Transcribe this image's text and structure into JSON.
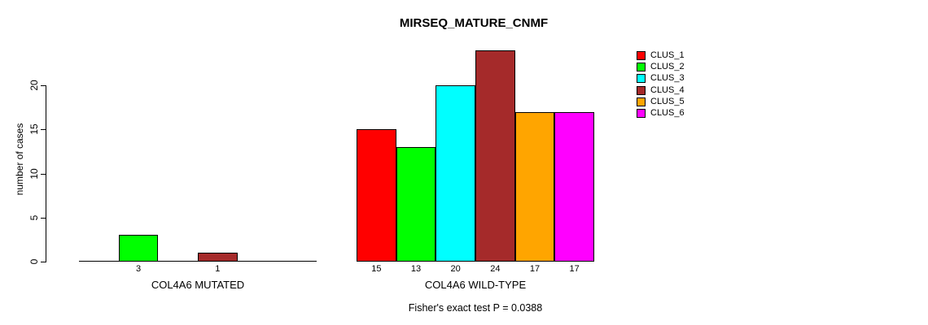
{
  "chart_data": {
    "type": "bar",
    "title": "MIRSEQ_MATURE_CNMF",
    "ylabel": "number of cases",
    "yticks": [
      0,
      5,
      10,
      15,
      20
    ],
    "ylim": [
      0,
      24
    ],
    "grid": false,
    "legend_position": "right",
    "clusters": [
      {
        "name": "CLUS_1",
        "color": "#FF0000"
      },
      {
        "name": "CLUS_2",
        "color": "#00FF00"
      },
      {
        "name": "CLUS_3",
        "color": "#00FFFF"
      },
      {
        "name": "CLUS_4",
        "color": "#A52A2A"
      },
      {
        "name": "CLUS_5",
        "color": "#FFA500"
      },
      {
        "name": "CLUS_6",
        "color": "#FF00FF"
      }
    ],
    "groups": [
      {
        "label": "COL4A6 MUTATED",
        "values": [
          0,
          3,
          0,
          1,
          0,
          0
        ]
      },
      {
        "label": "COL4A6 WILD-TYPE",
        "values": [
          15,
          13,
          20,
          24,
          17,
          17
        ]
      }
    ],
    "bar_value_labels_shown_for_zero": false,
    "footnote": "Fisher's exact test P = 0.0388"
  }
}
